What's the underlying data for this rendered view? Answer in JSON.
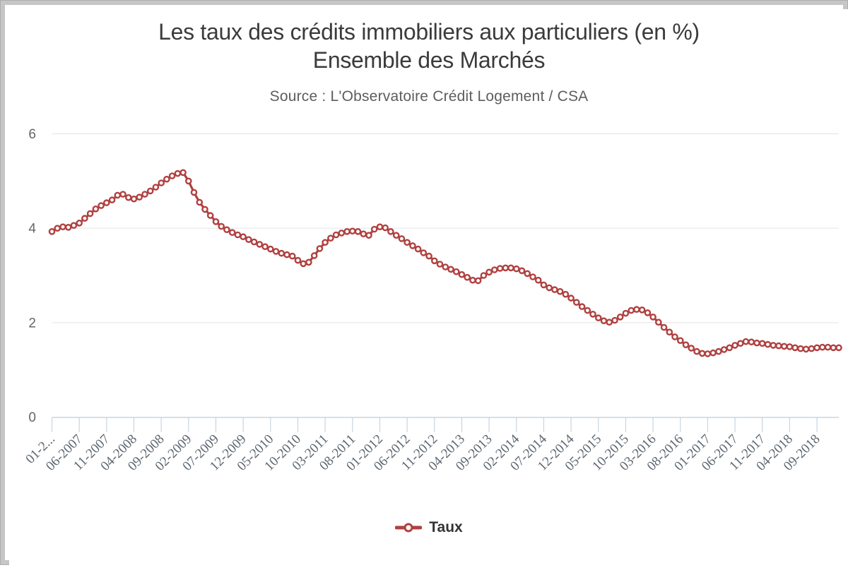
{
  "page": {
    "background": "#ffffff",
    "frame_border_color": "#c6c6c6",
    "frame_edge_color": "#adadad"
  },
  "header": {
    "title_line1": "Les taux des crédits immobiliers aux particuliers (en %)",
    "title_line2": "Ensemble des Marchés",
    "subtitle": "Source : L'Observatoire Crédit Logement / CSA"
  },
  "legend": {
    "label": "Taux"
  },
  "chart_data": {
    "type": "line",
    "title": "Les taux des crédits immobiliers aux particuliers (en %) — Ensemble des Marchés",
    "subtitle": "Source : L'Observatoire Crédit Logement / CSA",
    "ylabel": "",
    "xlabel": "",
    "ylim": [
      0,
      6
    ],
    "y_ticks": [
      0,
      2,
      4,
      6
    ],
    "grid": true,
    "legend_position": "bottom",
    "points_per_x_tick": 5,
    "x_tick_labels": [
      "01-2...",
      "06-2007",
      "11-2007",
      "04-2008",
      "09-2008",
      "02-2009",
      "07-2009",
      "12-2009",
      "05-2010",
      "10-2010",
      "03-2011",
      "08-2011",
      "01-2012",
      "06-2012",
      "11-2012",
      "04-2013",
      "09-2013",
      "02-2014",
      "07-2014",
      "12-2014",
      "05-2015",
      "10-2015",
      "03-2016",
      "08-2016",
      "01-2017",
      "06-2017",
      "11-2017",
      "04-2018",
      "09-2018"
    ],
    "series": [
      {
        "name": "Taux",
        "color": "#b04040",
        "marker_fill": "#ffffff",
        "values": [
          3.93,
          4.0,
          4.03,
          4.02,
          4.06,
          4.11,
          4.21,
          4.31,
          4.41,
          4.48,
          4.54,
          4.6,
          4.7,
          4.72,
          4.65,
          4.62,
          4.66,
          4.72,
          4.79,
          4.87,
          4.96,
          5.04,
          5.11,
          5.16,
          5.18,
          5.0,
          4.76,
          4.55,
          4.4,
          4.27,
          4.14,
          4.04,
          3.97,
          3.91,
          3.86,
          3.82,
          3.76,
          3.71,
          3.66,
          3.61,
          3.56,
          3.51,
          3.47,
          3.44,
          3.41,
          3.32,
          3.25,
          3.28,
          3.42,
          3.57,
          3.7,
          3.79,
          3.86,
          3.9,
          3.93,
          3.94,
          3.93,
          3.88,
          3.85,
          3.98,
          4.03,
          4.01,
          3.93,
          3.85,
          3.78,
          3.7,
          3.63,
          3.56,
          3.48,
          3.41,
          3.31,
          3.24,
          3.18,
          3.13,
          3.08,
          3.02,
          2.96,
          2.9,
          2.89,
          3.0,
          3.07,
          3.12,
          3.15,
          3.16,
          3.16,
          3.14,
          3.1,
          3.04,
          2.97,
          2.9,
          2.8,
          2.74,
          2.7,
          2.66,
          2.6,
          2.52,
          2.43,
          2.34,
          2.26,
          2.18,
          2.1,
          2.04,
          2.01,
          2.05,
          2.12,
          2.2,
          2.26,
          2.28,
          2.27,
          2.21,
          2.12,
          2.01,
          1.9,
          1.8,
          1.7,
          1.62,
          1.53,
          1.46,
          1.39,
          1.35,
          1.34,
          1.36,
          1.39,
          1.43,
          1.47,
          1.52,
          1.56,
          1.6,
          1.59,
          1.57,
          1.56,
          1.54,
          1.52,
          1.51,
          1.5,
          1.49,
          1.47,
          1.45,
          1.44,
          1.45,
          1.47,
          1.48,
          1.48,
          1.47,
          1.47
        ]
      }
    ],
    "axis_color": "#c6d5e1",
    "grid_color": "#e4e4e4",
    "x_label_color": "#5c6670",
    "y_label_color": "#666666"
  }
}
